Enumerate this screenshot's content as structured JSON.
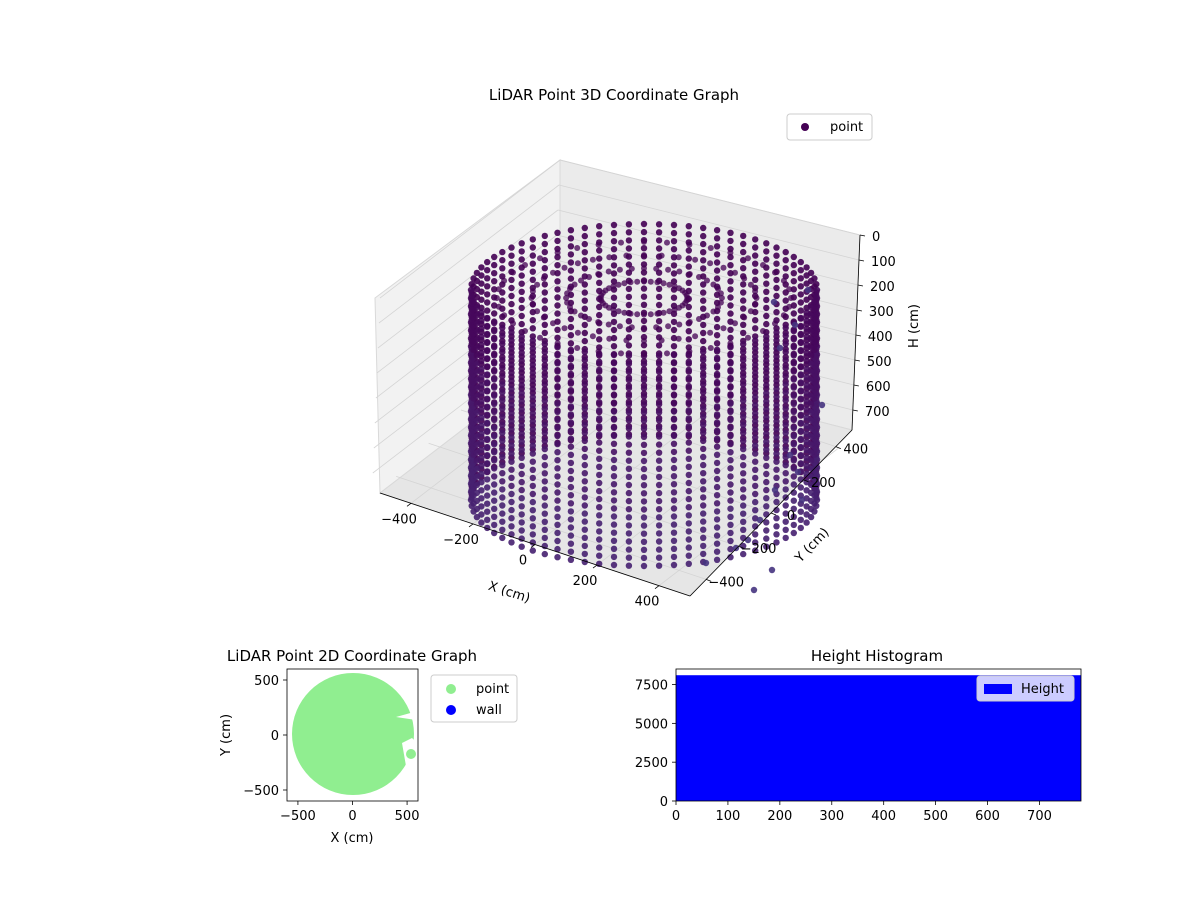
{
  "chart_data": [
    {
      "type": "scatter",
      "projection": "3d",
      "title": "LiDAR Point 3D Coordinate Graph",
      "xlabel": "X (cm)",
      "ylabel": "Y (cm)",
      "zlabel": "H (cm)",
      "x_ticks": [
        "−400",
        "−200",
        "0",
        "200",
        "400"
      ],
      "y_ticks": [
        "−400",
        "−200",
        "0",
        "200",
        "400"
      ],
      "z_ticks": [
        "0",
        "100",
        "200",
        "300",
        "400",
        "500",
        "600",
        "700"
      ],
      "xlim": [
        -500,
        500
      ],
      "ylim": [
        -500,
        500
      ],
      "zlim": [
        0,
        780
      ],
      "z_inverted": true,
      "legend": {
        "entries": [
          {
            "label": "point",
            "color": "#440154"
          }
        ],
        "placement": "upper-right"
      },
      "series": [
        {
          "name": "point",
          "color": "#440154",
          "shape": "cylindrical wall of points",
          "radius": 450,
          "height_range": [
            0,
            760
          ]
        }
      ]
    },
    {
      "type": "scatter",
      "title": "LiDAR Point 2D Coordinate Graph",
      "xlabel": "X (cm)",
      "ylabel": "Y (cm)",
      "x_ticks": [
        "−500",
        "0",
        "500"
      ],
      "y_ticks": [
        "−500",
        "0",
        "500"
      ],
      "xlim": [
        -600,
        600
      ],
      "ylim": [
        -600,
        600
      ],
      "legend": {
        "entries": [
          {
            "label": "point",
            "color": "#90ee90"
          },
          {
            "label": "wall",
            "color": "#0000ff"
          }
        ],
        "placement": "outside-right"
      },
      "series": [
        {
          "name": "point",
          "color": "#90ee90",
          "shape": "filled disc",
          "center": [
            0,
            0
          ],
          "radius": 550
        }
      ]
    },
    {
      "type": "bar",
      "subtype": "histogram",
      "title": "Height Histogram",
      "x_ticks": [
        "0",
        "100",
        "200",
        "300",
        "400",
        "500",
        "600",
        "700"
      ],
      "y_ticks": [
        "0",
        "2500",
        "5000",
        "7500"
      ],
      "xlim": [
        0,
        780
      ],
      "ylim": [
        0,
        8500
      ],
      "legend": {
        "entries": [
          {
            "label": "Height",
            "color": "#0000ff"
          }
        ],
        "placement": "upper-right"
      },
      "series": [
        {
          "name": "Height",
          "color": "#0000ff",
          "bin_range": [
            0,
            780
          ],
          "count": 8100
        }
      ]
    }
  ]
}
